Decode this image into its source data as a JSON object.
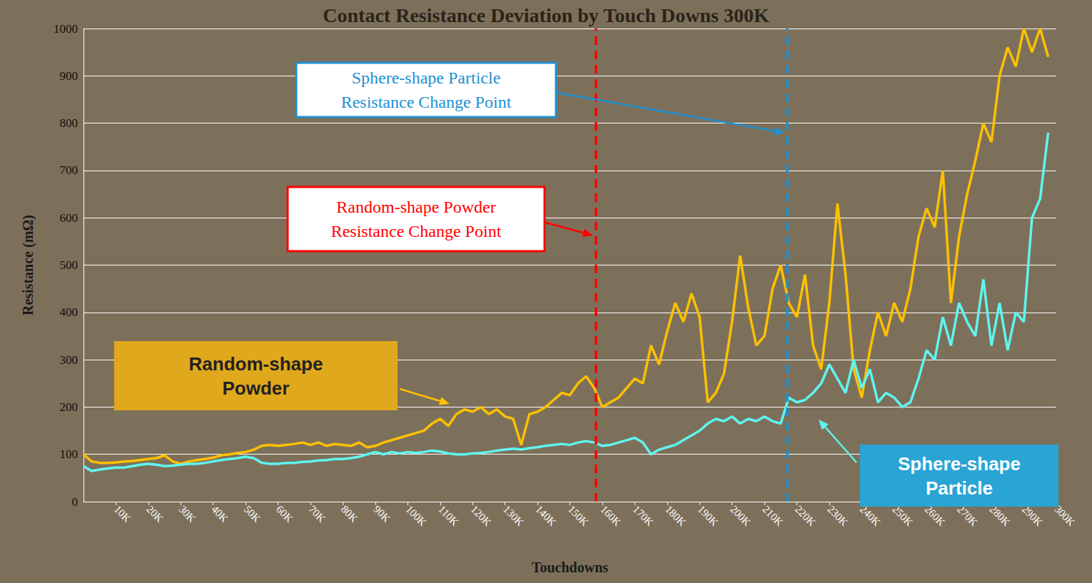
{
  "chart_data": {
    "type": "line",
    "title": "Contact Resistance Deviation by Touch Downs 300K",
    "x_label": "Touchdowns",
    "y_label": "Resistance (mΩ)",
    "x": [
      0,
      2500,
      5000,
      7500,
      10000,
      12500,
      15000,
      17500,
      20000,
      22500,
      25000,
      27500,
      30000,
      32500,
      35000,
      37500,
      40000,
      42500,
      45000,
      47500,
      50000,
      52500,
      55000,
      57500,
      60000,
      62500,
      65000,
      67500,
      70000,
      72500,
      75000,
      77500,
      80000,
      82500,
      85000,
      87500,
      90000,
      92500,
      95000,
      97500,
      100000,
      102500,
      105000,
      107500,
      110000,
      112500,
      115000,
      117500,
      120000,
      122500,
      125000,
      127500,
      130000,
      132500,
      135000,
      137500,
      140000,
      142500,
      145000,
      147500,
      150000,
      152500,
      155000,
      157500,
      160000,
      162500,
      165000,
      167500,
      170000,
      172500,
      175000,
      177500,
      180000,
      182500,
      185000,
      187500,
      190000,
      192500,
      195000,
      197500,
      200000,
      202500,
      205000,
      207500,
      210000,
      212500,
      215000,
      217500,
      220000,
      222500,
      225000,
      227500,
      230000,
      232500,
      235000,
      237500,
      240000,
      242500,
      245000,
      247500,
      250000,
      252500,
      255000,
      257500,
      260000,
      262500,
      265000,
      267500,
      270000,
      272500,
      275000,
      277500,
      280000,
      282500,
      285000,
      287500,
      290000,
      292500,
      295000,
      297500
    ],
    "series": [
      {
        "name": "Random-shape Powder",
        "color": "#ffc000",
        "values": [
          100,
          85,
          82,
          82,
          83,
          85,
          86,
          88,
          90,
          92,
          98,
          85,
          80,
          85,
          88,
          90,
          93,
          98,
          100,
          103,
          105,
          110,
          118,
          120,
          118,
          120,
          122,
          125,
          120,
          125,
          118,
          122,
          120,
          118,
          125,
          115,
          118,
          125,
          130,
          135,
          140,
          145,
          150,
          165,
          175,
          160,
          185,
          195,
          190,
          200,
          185,
          195,
          180,
          175,
          120,
          185,
          190,
          200,
          215,
          230,
          225,
          250,
          265,
          240,
          200,
          210,
          220,
          240,
          260,
          250,
          330,
          290,
          360,
          420,
          380,
          440,
          390,
          210,
          230,
          270,
          380,
          520,
          410,
          330,
          350,
          450,
          500,
          420,
          390,
          480,
          330,
          280,
          420,
          630,
          480,
          280,
          220,
          320,
          400,
          350,
          420,
          380,
          450,
          560,
          620,
          580,
          700,
          420,
          560,
          650,
          720,
          800,
          760,
          900,
          960,
          920,
          1000,
          950,
          1000,
          940
        ]
      },
      {
        "name": "Sphere-shape Particle",
        "color": "#5ff5f0",
        "values": [
          75,
          65,
          68,
          70,
          72,
          72,
          75,
          78,
          80,
          78,
          75,
          76,
          78,
          80,
          80,
          82,
          85,
          88,
          90,
          92,
          95,
          92,
          82,
          80,
          80,
          82,
          82,
          84,
          85,
          87,
          88,
          90,
          90,
          92,
          95,
          100,
          105,
          100,
          105,
          102,
          105,
          103,
          105,
          108,
          106,
          102,
          100,
          100,
          102,
          103,
          105,
          108,
          110,
          112,
          110,
          113,
          115,
          118,
          120,
          122,
          120,
          125,
          128,
          125,
          118,
          120,
          125,
          130,
          135,
          125,
          100,
          110,
          115,
          120,
          130,
          140,
          150,
          165,
          175,
          170,
          180,
          165,
          175,
          170,
          180,
          170,
          165,
          220,
          210,
          215,
          230,
          250,
          290,
          260,
          230,
          300,
          240,
          280,
          210,
          230,
          220,
          200,
          210,
          260,
          320,
          300,
          390,
          330,
          420,
          380,
          350,
          470,
          330,
          420,
          320,
          400,
          380,
          600,
          640,
          780
        ]
      }
    ],
    "annotations": [
      {
        "text": "Random-shape Powder Resistance Change Point",
        "x": 158000,
        "color": "#ff0000"
      },
      {
        "text": "Sphere-shape Particle Resistance Change Point",
        "x": 217000,
        "color": "#1e90d0"
      }
    ],
    "xlim": [
      0,
      300000
    ],
    "xticks": [
      {
        "value": 10000,
        "label": "10K"
      },
      {
        "value": 20000,
        "label": "20K"
      },
      {
        "value": 30000,
        "label": "30K"
      },
      {
        "value": 40000,
        "label": "40K"
      },
      {
        "value": 50000,
        "label": "50K"
      },
      {
        "value": 60000,
        "label": "60K"
      },
      {
        "value": 70000,
        "label": "70K"
      },
      {
        "value": 80000,
        "label": "80K"
      },
      {
        "value": 90000,
        "label": "90K"
      },
      {
        "value": 100000,
        "label": "100K"
      },
      {
        "value": 110000,
        "label": "110K"
      },
      {
        "value": 120000,
        "label": "120K"
      },
      {
        "value": 130000,
        "label": "130K"
      },
      {
        "value": 140000,
        "label": "140K"
      },
      {
        "value": 150000,
        "label": "150K"
      },
      {
        "value": 160000,
        "label": "160K"
      },
      {
        "value": 170000,
        "label": "170K"
      },
      {
        "value": 180000,
        "label": "180K"
      },
      {
        "value": 190000,
        "label": "190K"
      },
      {
        "value": 200000,
        "label": "200K"
      },
      {
        "value": 210000,
        "label": "210K"
      },
      {
        "value": 220000,
        "label": "220K"
      },
      {
        "value": 230000,
        "label": "230K"
      },
      {
        "value": 240000,
        "label": "240K"
      },
      {
        "value": 250000,
        "label": "250K"
      },
      {
        "value": 260000,
        "label": "260K"
      },
      {
        "value": 270000,
        "label": "270K"
      },
      {
        "value": 280000,
        "label": "280K"
      },
      {
        "value": 290000,
        "label": "290K"
      },
      {
        "value": 300000,
        "label": "300K"
      }
    ],
    "ylim": [
      0,
      1000
    ],
    "yticks": [
      0,
      100,
      200,
      300,
      400,
      500,
      600,
      700,
      800,
      900,
      1000
    ],
    "grid": true
  }
}
